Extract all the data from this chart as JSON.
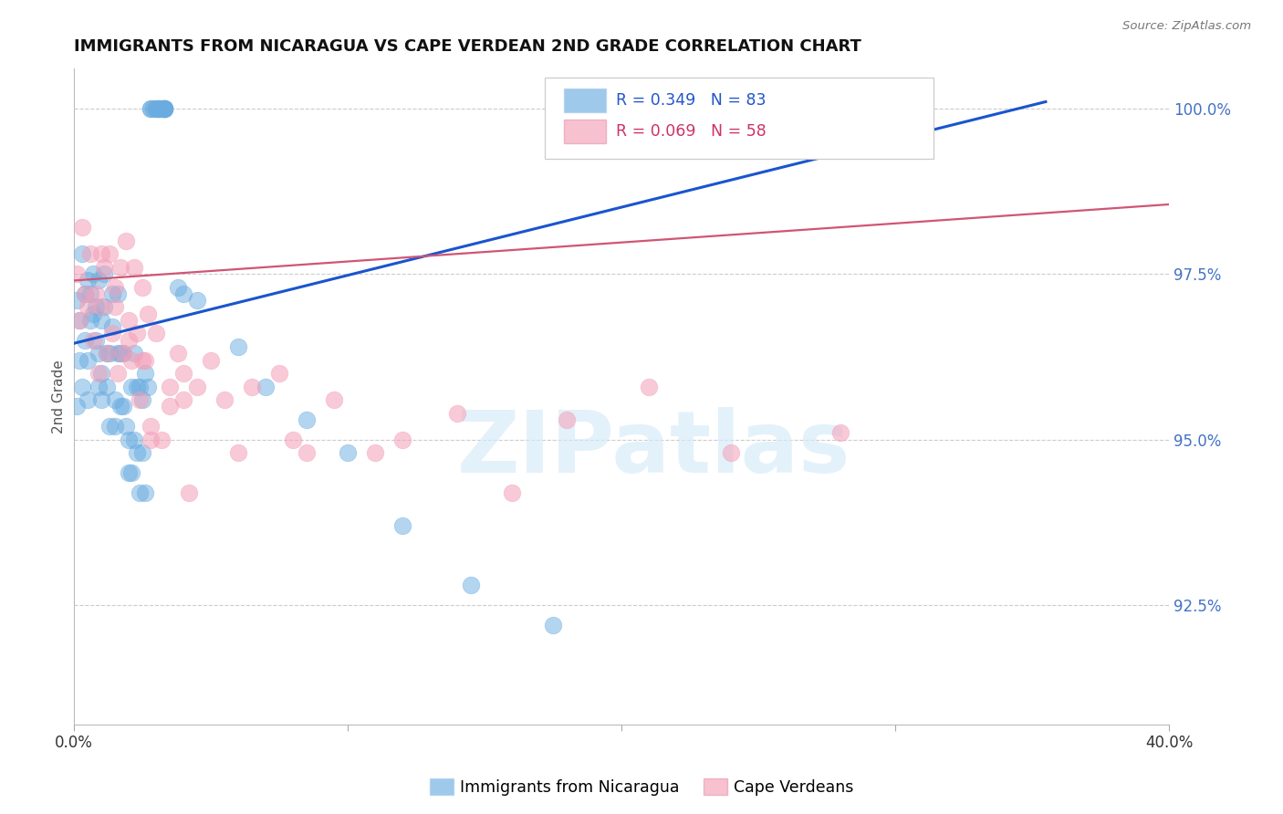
{
  "title": "IMMIGRANTS FROM NICARAGUA VS CAPE VERDEAN 2ND GRADE CORRELATION CHART",
  "source": "Source: ZipAtlas.com",
  "ylabel": "2nd Grade",
  "ylabel_right_labels": [
    "100.0%",
    "97.5%",
    "95.0%",
    "92.5%"
  ],
  "ylabel_right_values": [
    1.0,
    0.975,
    0.95,
    0.925
  ],
  "legend_blue_text": "R = 0.349   N = 83",
  "legend_pink_text": "R = 0.069   N = 58",
  "legend1_label": "Immigrants from Nicaragua",
  "legend2_label": "Cape Verdeans",
  "blue_color": "#6aace0",
  "pink_color": "#f4a0b8",
  "line_blue": "#1a55cc",
  "line_pink": "#d05575",
  "xlim": [
    0.0,
    0.4
  ],
  "ylim": [
    0.907,
    1.006
  ],
  "watermark_text": "ZIPatlas",
  "blue_scatter_x": [
    0.001,
    0.001,
    0.002,
    0.002,
    0.003,
    0.003,
    0.004,
    0.004,
    0.005,
    0.005,
    0.005,
    0.006,
    0.006,
    0.007,
    0.007,
    0.008,
    0.008,
    0.009,
    0.009,
    0.009,
    0.01,
    0.01,
    0.01,
    0.011,
    0.011,
    0.012,
    0.012,
    0.013,
    0.013,
    0.014,
    0.014,
    0.015,
    0.015,
    0.016,
    0.016,
    0.017,
    0.017,
    0.018,
    0.018,
    0.019,
    0.02,
    0.02,
    0.021,
    0.021,
    0.022,
    0.022,
    0.023,
    0.023,
    0.024,
    0.024,
    0.025,
    0.025,
    0.026,
    0.026,
    0.027,
    0.028,
    0.028,
    0.029,
    0.03,
    0.03,
    0.031,
    0.031,
    0.031,
    0.031,
    0.032,
    0.033,
    0.033,
    0.033,
    0.033,
    0.033,
    0.033,
    0.033,
    0.033,
    0.038,
    0.04,
    0.045,
    0.06,
    0.07,
    0.085,
    0.1,
    0.12,
    0.145,
    0.175
  ],
  "blue_scatter_y": [
    0.971,
    0.955,
    0.968,
    0.962,
    0.978,
    0.958,
    0.972,
    0.965,
    0.962,
    0.956,
    0.974,
    0.968,
    0.972,
    0.975,
    0.969,
    0.965,
    0.97,
    0.958,
    0.963,
    0.974,
    0.956,
    0.96,
    0.968,
    0.97,
    0.975,
    0.958,
    0.963,
    0.952,
    0.963,
    0.967,
    0.972,
    0.952,
    0.956,
    0.963,
    0.972,
    0.955,
    0.963,
    0.955,
    0.963,
    0.952,
    0.945,
    0.95,
    0.958,
    0.945,
    0.95,
    0.963,
    0.948,
    0.958,
    0.942,
    0.958,
    0.948,
    0.956,
    0.942,
    0.96,
    0.958,
    1.0,
    1.0,
    1.0,
    1.0,
    1.0,
    1.0,
    1.0,
    1.0,
    1.0,
    1.0,
    1.0,
    1.0,
    1.0,
    1.0,
    1.0,
    1.0,
    1.0,
    1.0,
    0.973,
    0.972,
    0.971,
    0.964,
    0.958,
    0.953,
    0.948,
    0.937,
    0.928,
    0.922
  ],
  "pink_scatter_x": [
    0.001,
    0.002,
    0.003,
    0.004,
    0.005,
    0.006,
    0.007,
    0.008,
    0.009,
    0.01,
    0.01,
    0.011,
    0.012,
    0.013,
    0.014,
    0.015,
    0.016,
    0.017,
    0.018,
    0.019,
    0.02,
    0.021,
    0.022,
    0.023,
    0.024,
    0.025,
    0.026,
    0.027,
    0.028,
    0.03,
    0.032,
    0.035,
    0.038,
    0.04,
    0.042,
    0.045,
    0.05,
    0.055,
    0.065,
    0.075,
    0.085,
    0.095,
    0.11,
    0.12,
    0.14,
    0.16,
    0.18,
    0.21,
    0.24,
    0.28,
    0.015,
    0.025,
    0.035,
    0.028,
    0.02,
    0.04,
    0.06,
    0.08
  ],
  "pink_scatter_y": [
    0.975,
    0.968,
    0.982,
    0.972,
    0.97,
    0.978,
    0.965,
    0.972,
    0.96,
    0.97,
    0.978,
    0.976,
    0.963,
    0.978,
    0.966,
    0.973,
    0.96,
    0.976,
    0.963,
    0.98,
    0.968,
    0.962,
    0.976,
    0.966,
    0.956,
    0.973,
    0.962,
    0.969,
    0.952,
    0.966,
    0.95,
    0.958,
    0.963,
    0.956,
    0.942,
    0.958,
    0.962,
    0.956,
    0.958,
    0.96,
    0.948,
    0.956,
    0.948,
    0.95,
    0.954,
    0.942,
    0.953,
    0.958,
    0.948,
    0.951,
    0.97,
    0.962,
    0.955,
    0.95,
    0.965,
    0.96,
    0.948,
    0.95
  ],
  "blue_trendline_x": [
    0.0,
    0.355
  ],
  "blue_trendline_y": [
    0.9645,
    1.001
  ],
  "pink_trendline_x": [
    0.0,
    0.4
  ],
  "pink_trendline_y": [
    0.974,
    0.9855
  ]
}
